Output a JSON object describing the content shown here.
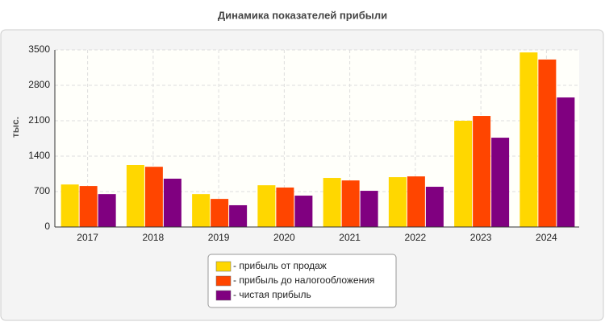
{
  "chart_data": {
    "type": "bar",
    "title": "Динамика показателей прибыли",
    "y_label": "тыс.",
    "categories": [
      "2017",
      "2018",
      "2019",
      "2020",
      "2021",
      "2022",
      "2023",
      "2024"
    ],
    "series": [
      {
        "name": "- прибыль от продаж",
        "color": "#ffd700",
        "values": [
          840,
          1225,
          650,
          825,
          970,
          985,
          2100,
          3450
        ]
      },
      {
        "name": "- прибыль до налогообложения",
        "color": "#ff4500",
        "values": [
          810,
          1190,
          555,
          780,
          920,
          1000,
          2195,
          3310
        ]
      },
      {
        "name": "- чистая прибыль",
        "color": "#800080",
        "values": [
          650,
          955,
          430,
          620,
          715,
          795,
          1765,
          2560
        ]
      }
    ],
    "ylim": [
      0,
      3500
    ],
    "yticks": [
      0,
      700,
      1400,
      2100,
      2800,
      3500
    ],
    "grid": true,
    "legend": "bottom"
  }
}
